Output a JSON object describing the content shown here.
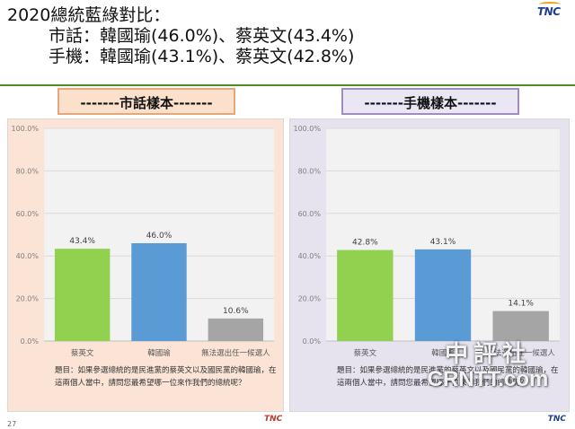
{
  "header": {
    "title": "2020總統藍綠對比：",
    "line1": "市話：韓國瑜(46.0%)、蔡英文(43.4%)",
    "line2": "手機：韓國瑜(43.1%)、蔡英文(42.8%)",
    "logo_text": "TNC"
  },
  "badges": {
    "left": "-------市話樣本-------",
    "right": "-------手機樣本-------"
  },
  "question": "題目：如果參選總統的是民進黨的蔡英文以及國民黨的韓國瑜，在這兩個人當中，請問您最希望哪一位來作我們的總統呢？",
  "footer": {
    "page_number": "27",
    "logo": "TNC",
    "logo2": "TNC"
  },
  "watermark": {
    "line1": "中評社",
    "line2": "CRNTT.com"
  },
  "chart_data": [
    {
      "type": "bar",
      "categories": [
        "蔡英文",
        "韓國瑜",
        "無法選出任一候選人"
      ],
      "values": [
        43.4,
        46.0,
        10.6
      ],
      "value_labels": [
        "43.4%",
        "46.0%",
        "10.6%"
      ],
      "colors": [
        "#92d050",
        "#5b9bd5",
        "#a5a5a5"
      ],
      "ylim": [
        0,
        100
      ],
      "yticks": [
        "0.0%",
        "20.0%",
        "40.0%",
        "60.0%",
        "80.0%",
        "100.0%"
      ],
      "grid": true
    },
    {
      "type": "bar",
      "categories": [
        "蔡英文",
        "韓國瑜",
        "無法選出任一候選人"
      ],
      "values": [
        42.8,
        43.1,
        14.1
      ],
      "value_labels": [
        "42.8%",
        "43.1%",
        "14.1%"
      ],
      "colors": [
        "#92d050",
        "#5b9bd5",
        "#a5a5a5"
      ],
      "ylim": [
        0,
        100
      ],
      "yticks": [
        "0.0%",
        "20.0%",
        "40.0%",
        "60.0%",
        "80.0%",
        "100.0%"
      ],
      "grid": true
    }
  ]
}
